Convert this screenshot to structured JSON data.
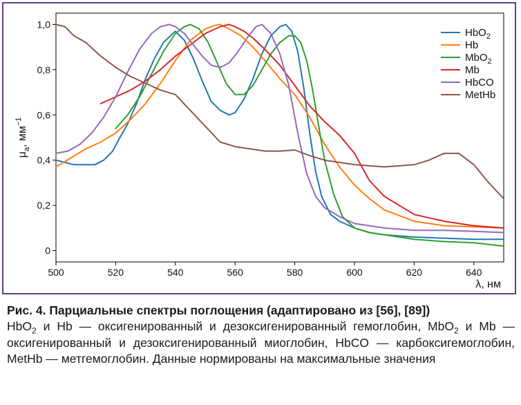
{
  "chart_data": {
    "type": "line",
    "xlabel": "λ, нм",
    "ylabel_main": "μ",
    "ylabel_sub": "a",
    "ylabel_rest": ", мм",
    "ylabel_sup": "−1",
    "xlim": [
      500,
      650
    ],
    "ylim": [
      -0.05,
      1.05
    ],
    "xticks": [
      500,
      520,
      540,
      560,
      580,
      600,
      620,
      640
    ],
    "yticks": [
      0,
      0.2,
      0.4,
      0.6,
      0.8,
      1.0
    ],
    "ytick_labels": [
      "0",
      "0,2",
      "0,4",
      "0,6",
      "0,8",
      "1,0"
    ],
    "grid": false,
    "legend_position": "top-right",
    "series": [
      {
        "name": "HbO2",
        "label_main": "HbO",
        "label_sub": "2",
        "color": "#1f77b4",
        "x": [
          500,
          503,
          506,
          510,
          513,
          516,
          519,
          521,
          524,
          527,
          530,
          533,
          536,
          540,
          543,
          546,
          549,
          552,
          555,
          558,
          560,
          563,
          566,
          569,
          572,
          575,
          577,
          579,
          581,
          583,
          585,
          587,
          589,
          592,
          595,
          600,
          605,
          610,
          620,
          630,
          640,
          650
        ],
        "y": [
          0.4,
          0.39,
          0.38,
          0.38,
          0.38,
          0.4,
          0.44,
          0.49,
          0.56,
          0.65,
          0.76,
          0.85,
          0.92,
          0.97,
          0.93,
          0.85,
          0.75,
          0.66,
          0.62,
          0.6,
          0.61,
          0.67,
          0.76,
          0.87,
          0.95,
          0.99,
          1.0,
          0.97,
          0.88,
          0.72,
          0.52,
          0.35,
          0.24,
          0.16,
          0.13,
          0.1,
          0.08,
          0.07,
          0.06,
          0.055,
          0.05,
          0.05
        ]
      },
      {
        "name": "Hb",
        "label_main": "Hb",
        "label_sub": "",
        "color": "#ff7f0e",
        "x": [
          500,
          505,
          510,
          515,
          520,
          525,
          530,
          535,
          540,
          545,
          550,
          553,
          555,
          558,
          562,
          566,
          570,
          575,
          580,
          585,
          590,
          595,
          600,
          605,
          610,
          620,
          630,
          640,
          650
        ],
        "y": [
          0.37,
          0.41,
          0.45,
          0.48,
          0.52,
          0.58,
          0.65,
          0.74,
          0.84,
          0.93,
          0.98,
          0.995,
          1.0,
          0.98,
          0.95,
          0.9,
          0.84,
          0.76,
          0.69,
          0.59,
          0.47,
          0.37,
          0.29,
          0.23,
          0.18,
          0.13,
          0.11,
          0.105,
          0.1
        ]
      },
      {
        "name": "MbO2",
        "label_main": "MbO",
        "label_sub": "2",
        "color": "#2ca02c",
        "x": [
          520,
          524,
          528,
          532,
          536,
          540,
          543,
          545,
          548,
          551,
          554,
          557,
          560,
          563,
          566,
          569,
          572,
          575,
          578,
          580,
          582,
          584,
          586,
          588,
          590,
          593,
          596,
          600,
          605,
          610,
          620,
          630,
          640,
          650
        ],
        "y": [
          0.54,
          0.6,
          0.68,
          0.78,
          0.88,
          0.96,
          0.99,
          1.0,
          0.98,
          0.92,
          0.83,
          0.74,
          0.69,
          0.69,
          0.73,
          0.8,
          0.87,
          0.92,
          0.95,
          0.95,
          0.92,
          0.84,
          0.71,
          0.55,
          0.4,
          0.25,
          0.15,
          0.1,
          0.08,
          0.07,
          0.05,
          0.04,
          0.035,
          0.02
        ]
      },
      {
        "name": "Mb",
        "label_main": "Mb",
        "label_sub": "",
        "color": "#d62728",
        "x": [
          515,
          520,
          525,
          530,
          535,
          540,
          545,
          550,
          555,
          558,
          560,
          563,
          566,
          570,
          575,
          580,
          585,
          590,
          595,
          600,
          605,
          610,
          615,
          620,
          630,
          640,
          650
        ],
        "y": [
          0.65,
          0.68,
          0.71,
          0.75,
          0.8,
          0.86,
          0.91,
          0.96,
          0.99,
          1.0,
          0.99,
          0.97,
          0.94,
          0.89,
          0.82,
          0.73,
          0.64,
          0.57,
          0.51,
          0.43,
          0.31,
          0.24,
          0.2,
          0.16,
          0.13,
          0.11,
          0.1
        ]
      },
      {
        "name": "HbCO",
        "label_main": "HbCO",
        "label_sub": "",
        "color": "#9467bd",
        "x": [
          500,
          504,
          508,
          512,
          516,
          520,
          524,
          528,
          532,
          535,
          538,
          540,
          543,
          546,
          549,
          552,
          555,
          558,
          561,
          564,
          567,
          569,
          572,
          575,
          578,
          581,
          584,
          587,
          590,
          595,
          600,
          605,
          610,
          620,
          630,
          640,
          650
        ],
        "y": [
          0.43,
          0.44,
          0.47,
          0.52,
          0.59,
          0.68,
          0.79,
          0.89,
          0.96,
          0.99,
          1.0,
          0.99,
          0.96,
          0.91,
          0.86,
          0.82,
          0.81,
          0.83,
          0.88,
          0.94,
          0.99,
          1.0,
          0.96,
          0.87,
          0.73,
          0.52,
          0.34,
          0.24,
          0.19,
          0.15,
          0.12,
          0.11,
          0.1,
          0.09,
          0.09,
          0.085,
          0.08
        ]
      },
      {
        "name": "MetHb",
        "label_main": "MetHb",
        "label_sub": "",
        "color": "#8c564b",
        "x": [
          500,
          503,
          506,
          510,
          515,
          520,
          525,
          530,
          535,
          540,
          545,
          550,
          555,
          560,
          565,
          570,
          575,
          580,
          585,
          590,
          595,
          600,
          605,
          610,
          615,
          620,
          625,
          630,
          635,
          640,
          645,
          650
        ],
        "y": [
          1.0,
          0.99,
          0.95,
          0.92,
          0.86,
          0.81,
          0.77,
          0.74,
          0.71,
          0.69,
          0.62,
          0.55,
          0.48,
          0.46,
          0.45,
          0.44,
          0.44,
          0.445,
          0.42,
          0.4,
          0.39,
          0.38,
          0.375,
          0.37,
          0.375,
          0.38,
          0.4,
          0.43,
          0.43,
          0.38,
          0.3,
          0.23
        ]
      }
    ]
  },
  "caption": {
    "title": "Рис. 4. Парциальные спектры поглощения (адаптировано из [56], [89])",
    "part1": "HbO",
    "sub1": "2",
    "part2": " и Hb — оксигенированный и дезоксигенированный гемоглобин, MbO",
    "sub2": "2",
    "part3": " и Mb — оксигенированный и дезоксигенированный миоглобин, HbCO — карбоксигемоглобин, MetHb — метгемоглобин. Данные нормированы на максимальные значения"
  }
}
